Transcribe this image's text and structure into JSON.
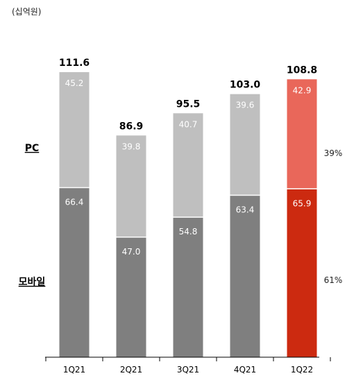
{
  "chart_data": {
    "type": "bar",
    "stacked": true,
    "unit_label": "(십억원)",
    "categories": [
      "1Q21",
      "2Q21",
      "3Q21",
      "4Q21",
      "1Q22"
    ],
    "series": [
      {
        "name": "모바일",
        "values": [
          66.4,
          47.0,
          54.8,
          63.4,
          65.9
        ],
        "color": "#7f7f7f",
        "highlight_color": "#cc2a10"
      },
      {
        "name": "PC",
        "values": [
          45.2,
          39.8,
          40.7,
          39.6,
          42.9
        ],
        "color": "#bfbfbf",
        "highlight_color": "#e9675a"
      }
    ],
    "value_labels": {
      "모바일": [
        "66.4",
        "47.0",
        "54.8",
        "63.4",
        "65.9"
      ],
      "PC": [
        "45.2",
        "39.8",
        "40.7",
        "39.6",
        "42.9"
      ]
    },
    "totals": [
      "111.6",
      "86.9",
      "95.5",
      "103.0",
      "108.8"
    ],
    "highlight_index": 4,
    "share_labels": {
      "PC": "39%",
      "모바일": "61%"
    },
    "ylim": [
      0,
      111.6
    ],
    "grid": false,
    "legend": "left"
  }
}
